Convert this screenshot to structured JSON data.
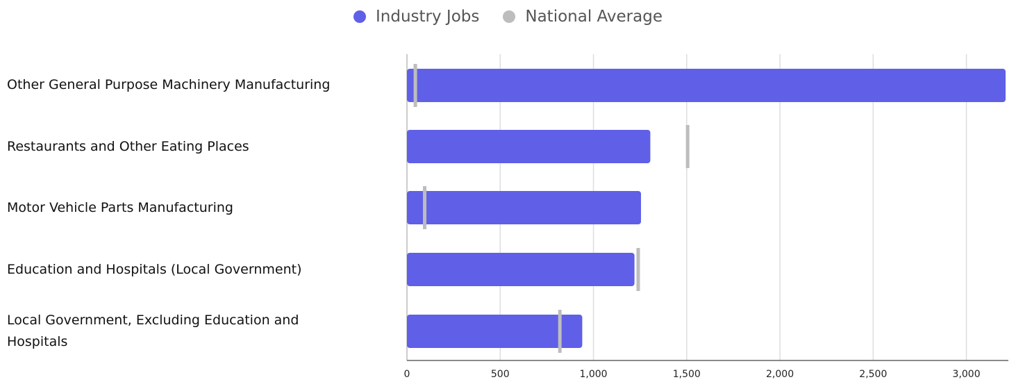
{
  "legend": {
    "industry_label": "Industry Jobs",
    "national_label": "National Average",
    "industry_color": "#5f5fe8",
    "national_color": "#bdbdbd"
  },
  "chart_data": {
    "type": "bar",
    "orientation": "horizontal",
    "categories": [
      "Other General Purpose Machinery Manufacturing",
      "Restaurants and Other Eating Places",
      "Motor Vehicle Parts Manufacturing",
      "Education and Hospitals (Local Government)",
      "Local Government, Excluding Education and Hospitals"
    ],
    "series": [
      {
        "name": "Industry Jobs",
        "values": [
          3210,
          1305,
          1255,
          1220,
          940
        ],
        "color": "#5f5fe8"
      },
      {
        "name": "National Average",
        "values": [
          45,
          1505,
          95,
          1240,
          820
        ],
        "color": "#bdbdbd"
      }
    ],
    "xlim": [
      0,
      3210
    ],
    "xticks": [
      0,
      500,
      1000,
      1500,
      2000,
      2500,
      3000
    ],
    "xtick_labels": [
      "0",
      "500",
      "1,000",
      "1,500",
      "2,000",
      "2,500",
      "3,000"
    ],
    "grid": true,
    "legend_position": "top-center"
  }
}
